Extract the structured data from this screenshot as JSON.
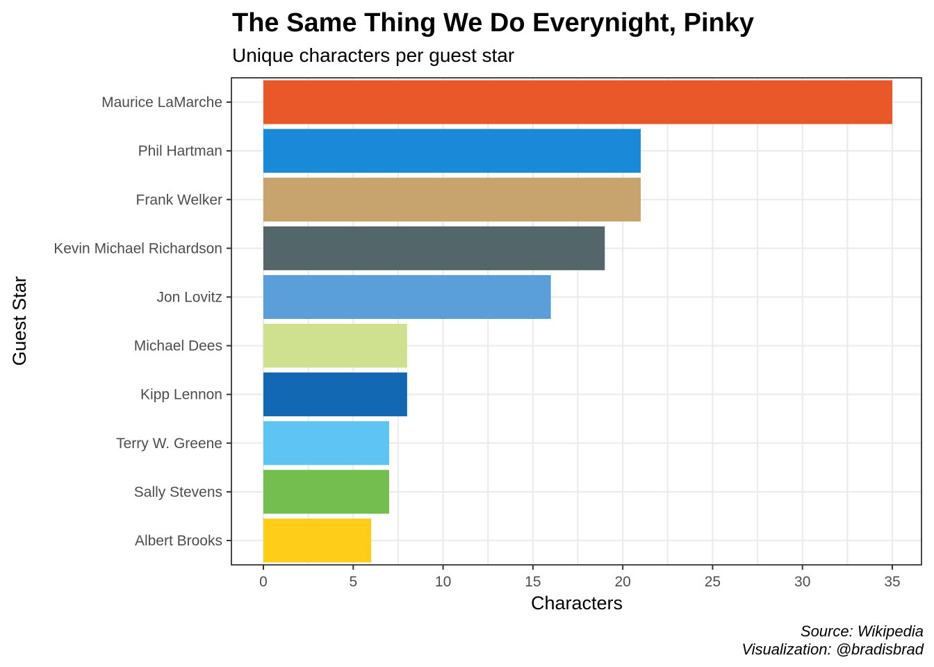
{
  "chart_data": {
    "type": "bar",
    "orientation": "horizontal",
    "title": "The Same Thing We Do Everynight, Pinky",
    "subtitle": "Unique characters per guest star",
    "xlabel": "Characters",
    "ylabel": "Guest Star",
    "xlim": [
      0,
      35
    ],
    "x_ticks": [
      0,
      5,
      10,
      15,
      20,
      25,
      30,
      35
    ],
    "grid": true,
    "legend": "none",
    "categories": [
      "Maurice LaMarche",
      "Phil Hartman",
      "Frank Welker",
      "Kevin Michael Richardson",
      "Jon Lovitz",
      "Michael Dees",
      "Kipp Lennon",
      "Terry W. Greene",
      "Sally Stevens",
      "Albert Brooks"
    ],
    "values": [
      35,
      21,
      21,
      19,
      16,
      8,
      8,
      7,
      7,
      6
    ],
    "colors": [
      "#e95829",
      "#1a8ad8",
      "#c7a36d",
      "#53676b",
      "#5a9fd9",
      "#cfe18e",
      "#1368b4",
      "#5ec4f4",
      "#74bd4f",
      "#fecd1a"
    ],
    "caption_lines": [
      "Source: Wikipedia",
      "Visualization: @bradisbrad"
    ]
  }
}
